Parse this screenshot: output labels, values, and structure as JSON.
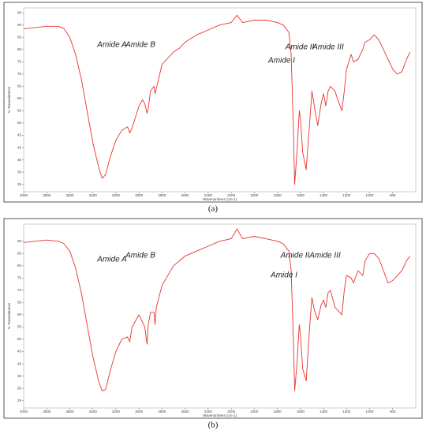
{
  "chart_data": [
    {
      "type": "line",
      "caption": "(a)",
      "x_label": "Wavenumbers (cm-1)",
      "y_label": "% Transmittance",
      "annotations": [
        "Amide A",
        "Amide B",
        "Amide I",
        "Amide II",
        "Amide III"
      ],
      "color": "#e8322e",
      "xlim": [
        4000,
        600
      ],
      "ylim": [
        22,
        97
      ],
      "xticks": [
        4000,
        3800,
        3600,
        3400,
        3200,
        3000,
        2800,
        2600,
        2400,
        2200,
        2000,
        1800,
        1600,
        1400,
        1200,
        1000,
        800
      ],
      "yticks": [
        25,
        30,
        35,
        40,
        45,
        50,
        55,
        60,
        65,
        70,
        75,
        80,
        85,
        90,
        95
      ],
      "x": [
        4000,
        3900,
        3800,
        3700,
        3650,
        3600,
        3550,
        3500,
        3450,
        3400,
        3350,
        3320,
        3290,
        3250,
        3200,
        3150,
        3100,
        3080,
        3060,
        3000,
        2970,
        2950,
        2930,
        2920,
        2900,
        2870,
        2860,
        2850,
        2800,
        2700,
        2650,
        2600,
        2500,
        2400,
        2300,
        2200,
        2150,
        2100,
        2000,
        1900,
        1800,
        1750,
        1700,
        1680,
        1660,
        1650,
        1630,
        1610,
        1600,
        1580,
        1550,
        1520,
        1500,
        1480,
        1450,
        1420,
        1400,
        1380,
        1360,
        1340,
        1300,
        1280,
        1240,
        1220,
        1200,
        1160,
        1140,
        1100,
        1060,
        1040,
        1000,
        960,
        920,
        880,
        840,
        800,
        760,
        720,
        680,
        650
      ],
      "values": [
        88.5,
        89,
        89.5,
        89.5,
        88.5,
        85,
        78,
        68,
        55,
        42,
        32,
        27.5,
        29,
        36,
        43,
        47,
        48.5,
        46,
        48,
        57,
        59.5,
        58,
        54,
        56,
        63,
        65,
        62,
        64,
        74,
        79,
        80.5,
        83,
        86,
        88,
        90,
        91,
        94,
        91,
        92,
        92,
        91,
        90,
        87,
        78,
        45,
        25,
        38,
        55,
        52,
        38,
        31,
        50,
        63,
        57,
        49,
        58,
        62,
        57,
        63,
        65,
        63,
        60,
        55,
        63,
        72,
        78,
        75,
        76,
        80,
        83,
        84,
        86,
        84,
        80,
        76,
        72,
        70,
        71,
        76,
        79
      ]
    },
    {
      "type": "line",
      "caption": "(b)",
      "x_label": "Wavenumbers (cm-1)",
      "y_label": "% Transmittance",
      "annotations": [
        "Amide A",
        "Amide B",
        "Amide I",
        "Amide II",
        "Amide III"
      ],
      "color": "#e8322e",
      "xlim": [
        4000,
        600
      ],
      "ylim": [
        22,
        97
      ],
      "xticks": [
        4000,
        3800,
        3600,
        3400,
        3200,
        3000,
        2800,
        2600,
        2400,
        2200,
        2000,
        1800,
        1600,
        1400,
        1200,
        1000,
        800
      ],
      "yticks": [
        25,
        30,
        35,
        40,
        45,
        50,
        55,
        60,
        65,
        70,
        75,
        80,
        85,
        90
      ],
      "x": [
        4000,
        3900,
        3800,
        3700,
        3650,
        3600,
        3550,
        3500,
        3450,
        3400,
        3350,
        3320,
        3290,
        3250,
        3200,
        3150,
        3100,
        3080,
        3060,
        3000,
        2970,
        2950,
        2930,
        2920,
        2900,
        2870,
        2860,
        2850,
        2800,
        2700,
        2650,
        2600,
        2500,
        2400,
        2300,
        2200,
        2150,
        2100,
        2000,
        1900,
        1800,
        1750,
        1700,
        1680,
        1660,
        1650,
        1630,
        1610,
        1600,
        1580,
        1550,
        1520,
        1500,
        1480,
        1450,
        1420,
        1400,
        1380,
        1360,
        1340,
        1300,
        1280,
        1240,
        1220,
        1200,
        1160,
        1140,
        1100,
        1060,
        1040,
        1000,
        960,
        920,
        880,
        840,
        800,
        760,
        720,
        680,
        650
      ],
      "values": [
        89.5,
        90,
        90.5,
        90,
        89,
        86,
        79,
        69,
        56,
        43,
        33,
        29,
        29.5,
        37,
        45,
        50,
        51,
        49,
        55,
        60,
        57,
        55,
        48,
        56,
        61,
        61,
        56,
        63,
        72,
        80,
        82,
        84,
        86,
        88,
        90,
        91,
        95,
        91,
        92,
        91,
        90,
        89,
        86,
        78,
        48,
        29,
        40,
        56,
        52,
        38,
        33,
        55,
        67,
        62,
        58,
        64,
        66,
        63,
        69,
        70,
        63,
        62,
        60,
        70,
        76,
        75,
        73,
        78,
        76,
        82,
        85,
        85,
        83,
        78,
        73,
        74,
        76,
        78,
        82,
        84
      ]
    }
  ]
}
